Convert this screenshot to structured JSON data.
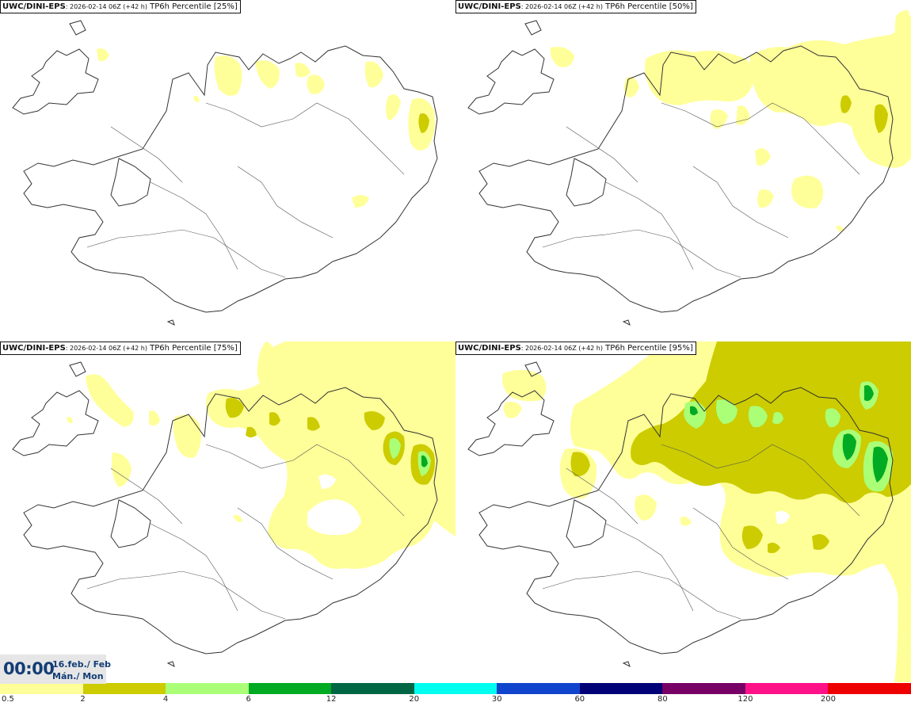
{
  "panels": [
    {
      "model": "UWC/DINI-EPS",
      "run": ": 2026-02-14 06Z (+42 h)",
      "product": " TP6h Percentile [25%]"
    },
    {
      "model": "UWC/DINI-EPS",
      "run": ": 2026-02-14 06Z (+42 h)",
      "product": " TP6h Percentile [50%]"
    },
    {
      "model": "UWC/DINI-EPS",
      "run": ": 2026-02-14 06Z (+42 h)",
      "product": " TP6h Percentile [75%]"
    },
    {
      "model": "UWC/DINI-EPS",
      "run": ": 2026-02-14 06Z (+42 h)",
      "product": " TP6h Percentile [95%]"
    }
  ],
  "valid_time": {
    "time": "00:00",
    "date": "16.feb./ Feb",
    "day": "Mán./ Mon"
  },
  "legend": {
    "ticks": [
      "0.5",
      "2",
      "4",
      "6",
      "12",
      "20",
      "30",
      "60",
      "80",
      "120",
      "200"
    ],
    "colors": [
      "#ffff99",
      "#cccc00",
      "#aaff77",
      "#00aa22",
      "#006644",
      "#00ffee",
      "#1144cc",
      "#000077",
      "#770066",
      "#ff1188",
      "#ee0000"
    ]
  },
  "map_colors": {
    "light": "#ffff99",
    "medium": "#cccc00",
    "lightgreen": "#aaff77",
    "green": "#00aa22",
    "coast": "#333333",
    "road": "#555555"
  }
}
